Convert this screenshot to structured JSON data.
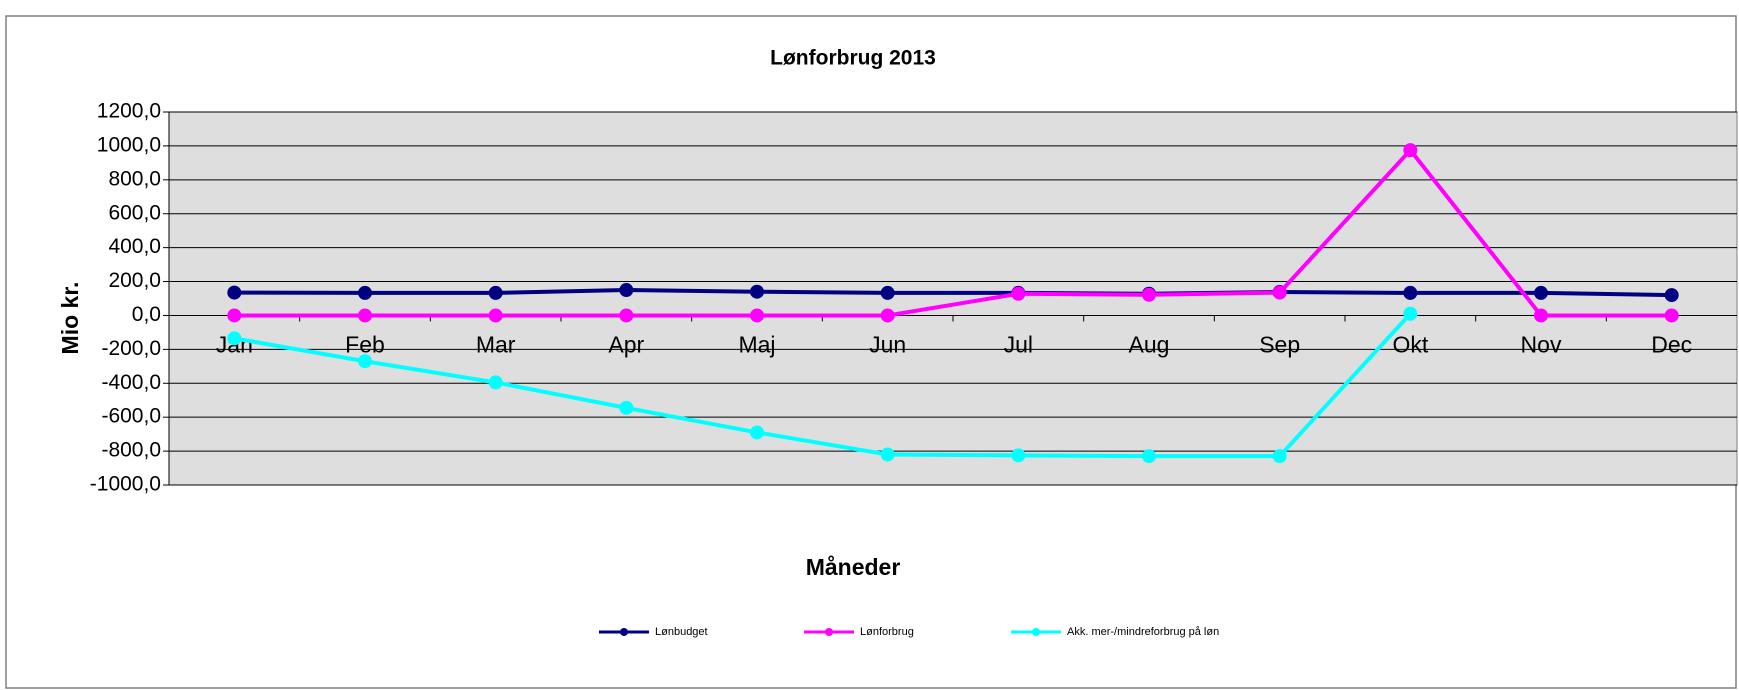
{
  "chart_data": {
    "type": "line",
    "title": "Lønforbrug  2013",
    "x_label": "Måneder",
    "y_label": "Mio kr.",
    "categories": [
      "Jan",
      "Feb",
      "Mar",
      "Apr",
      "Maj",
      "Jun",
      "Jul",
      "Aug",
      "Sep",
      "Okt",
      "Nov",
      "Dec"
    ],
    "series": [
      {
        "name": "Lønbudget",
        "color": "#000080",
        "values": [
          135,
          133,
          133,
          150,
          140,
          133,
          133,
          128,
          138,
          133,
          133,
          120
        ]
      },
      {
        "name": "Lønforbrug",
        "color": "#ff00ff",
        "values": [
          0,
          0,
          0,
          0,
          0,
          0,
          128,
          122,
          135,
          975,
          0,
          0
        ]
      },
      {
        "name": "Akk. mer-/mindreforbrug på løn",
        "color": "#00ffff",
        "values": [
          -135,
          -270,
          -395,
          -545,
          -690,
          -820,
          -825,
          -830,
          -830,
          10,
          null,
          null
        ]
      }
    ],
    "ylim": [
      -1000,
      1200
    ],
    "yticks": [
      {
        "value": -1000,
        "label": "-1000,0"
      },
      {
        "value": -800,
        "label": "-800,0"
      },
      {
        "value": -600,
        "label": "-600,0"
      },
      {
        "value": -400,
        "label": "-400,0"
      },
      {
        "value": -200,
        "label": "-200,0"
      },
      {
        "value": 0,
        "label": "0,0"
      },
      {
        "value": 200,
        "label": "200,0"
      },
      {
        "value": 400,
        "label": "400,0"
      },
      {
        "value": 600,
        "label": "600,0"
      },
      {
        "value": 800,
        "label": "800,0"
      },
      {
        "value": 1000,
        "label": "1000,0"
      },
      {
        "value": 1200,
        "label": "1200,0"
      }
    ],
    "grid": true,
    "legend": "bottom"
  }
}
